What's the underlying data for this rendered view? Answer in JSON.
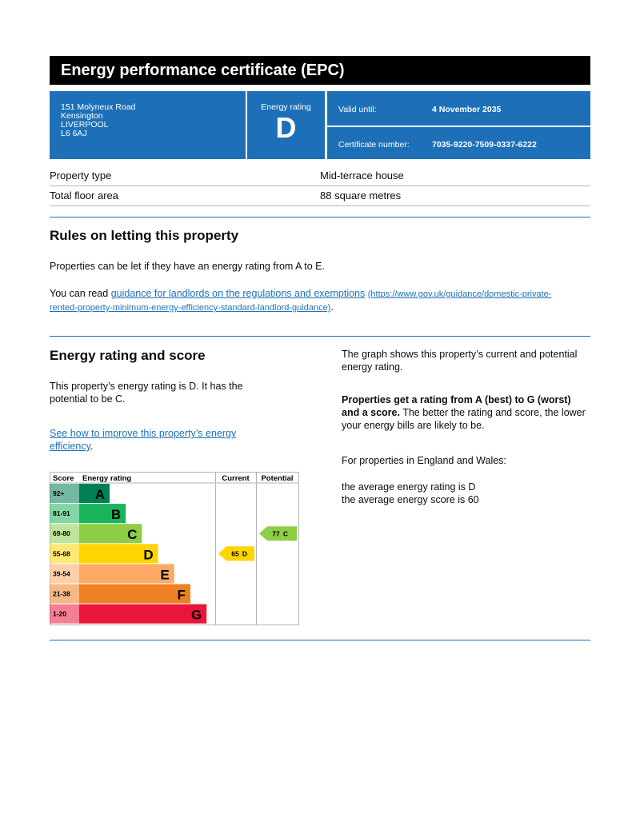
{
  "header": {
    "title": "Energy performance certificate (EPC)"
  },
  "address": [
    "151 Molyneux Road",
    "Kensington",
    "LIVERPOOL",
    "L6 6AJ"
  ],
  "rating_box": {
    "label": "Energy rating",
    "rating": "D"
  },
  "valid_until": {
    "label": "Valid until:",
    "value": "4 November 2035"
  },
  "certificate": {
    "label": "Certificate number:",
    "value": "7035-9220-7509-0337-6222"
  },
  "property": [
    [
      "Property type",
      "Mid-terrace house"
    ],
    [
      "Total floor area",
      "88 square metres"
    ]
  ],
  "rules": {
    "title": "Rules on letting this property",
    "p1": "Properties can be let if they have an energy rating from A to E.",
    "p2_prefix": "You can read ",
    "link_text": "guidance for landlords on the regulations and exemptions",
    "link_url": "(https://www.gov.uk/guidance/domestic-private-rented-property-minimum-energy-efficiency-standard-landlord-guidance)",
    "p2_suffix": "."
  },
  "rating_section": {
    "title": "Energy rating and score",
    "p1": "This property’s energy rating is D. It has the potential to be C.",
    "link_text": "See how to improve this property’s energy efficiency",
    "link_suffix": ".",
    "right_p1": "The graph shows this property’s current and potential energy rating.",
    "right_p2_bold": "Properties get a rating from A (best) to G (worst) and a score.",
    "right_p2_rest": " The better the rating and score, the lower your energy bills are likely to be.",
    "right_p3": "For properties in England and Wales:",
    "right_p4": "the average energy rating is D",
    "right_p5": "the average energy score is 60"
  },
  "chart": {
    "headers": [
      "Score",
      "Energy rating",
      "Current",
      "Potential"
    ],
    "bands": [
      {
        "score": "92+",
        "letter": "A",
        "color": "#008054"
      },
      {
        "score": "81-91",
        "letter": "B",
        "color": "#19b459"
      },
      {
        "score": "69-80",
        "letter": "C",
        "color": "#8dce46"
      },
      {
        "score": "55-68",
        "letter": "D",
        "color": "#ffd500"
      },
      {
        "score": "39-54",
        "letter": "E",
        "color": "#fcaa65"
      },
      {
        "score": "21-38",
        "letter": "F",
        "color": "#ef8023"
      },
      {
        "score": "1-20",
        "letter": "G",
        "color": "#e9153b"
      }
    ],
    "current": {
      "score": 65,
      "letter": "D"
    },
    "potential": {
      "score": 77,
      "letter": "C"
    }
  }
}
